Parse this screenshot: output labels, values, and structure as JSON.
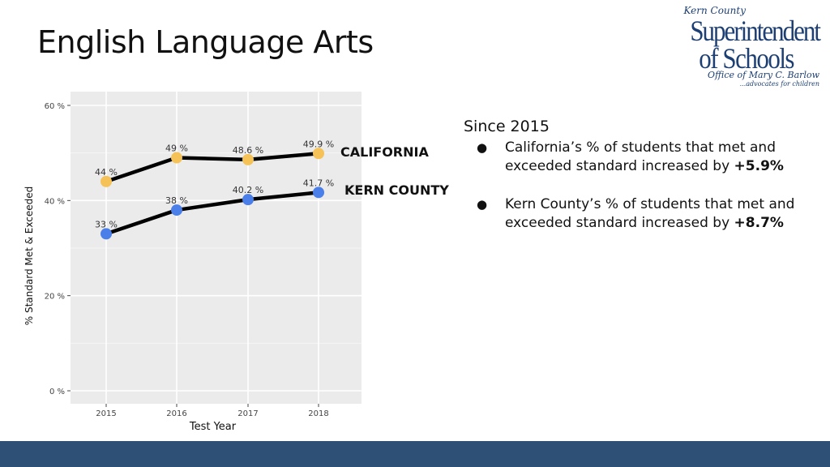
{
  "slide": {
    "title": "English Language Arts"
  },
  "logo": {
    "line1": "Kern County",
    "line2": "Superintendent",
    "line3": "of Schools",
    "line4": "Office of Mary C. Barlow",
    "line5": "...advocates for children"
  },
  "chart_data": {
    "type": "line",
    "categories": [
      "2015",
      "2016",
      "2017",
      "2018"
    ],
    "xlabel": "Test Year",
    "ylabel": "% Standard Met & Exceeded",
    "ylim": [
      0,
      60
    ],
    "yticks": [
      0,
      20,
      40,
      60
    ],
    "ytick_labels": [
      "0 %",
      "20 %",
      "40 %",
      "60 %"
    ],
    "grid": true,
    "series": [
      {
        "name": "CALIFORNIA",
        "values": [
          44,
          49,
          48.6,
          49.9
        ],
        "labels": [
          "44 %",
          "49 %",
          "48.6 %",
          "49.9 %"
        ],
        "color": "#f5c258"
      },
      {
        "name": "KERN COUNTY",
        "values": [
          33,
          38,
          40.2,
          41.7
        ],
        "labels": [
          "33 %",
          "38 %",
          "40.2 %",
          "41.7 %"
        ],
        "color": "#4a7ee8"
      }
    ]
  },
  "notes": {
    "since": "Since 2015",
    "bullets": [
      {
        "text": "California’s % of students that met and exceeded standard increased by ",
        "value": "+5.9%"
      },
      {
        "text": "Kern County’s % of students that met and exceeded standard increased by ",
        "value": "+8.7%"
      }
    ]
  },
  "colors": {
    "footer": "#2e5077",
    "panel": "#ebebeb",
    "line": "#000000"
  }
}
